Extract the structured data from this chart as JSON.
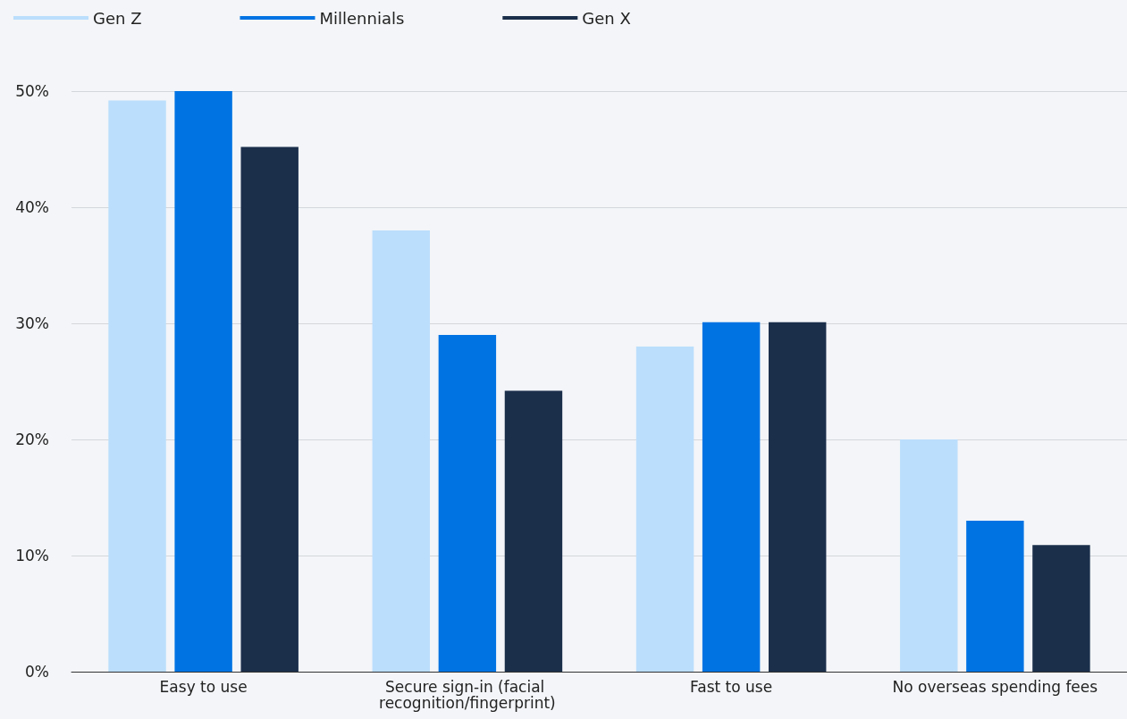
{
  "chart_data": {
    "type": "bar",
    "categories": [
      "Easy to use",
      "Secure sign-in (facial recognition/fingerprint)",
      "Fast to use",
      "No overseas spending fees"
    ],
    "series": [
      {
        "name": "Gen Z",
        "color": "#bbdefc",
        "values": [
          49.2,
          38,
          28,
          20
        ]
      },
      {
        "name": "Millennials",
        "color": "#0073e3",
        "values": [
          50,
          29,
          30.1,
          13
        ]
      },
      {
        "name": "Gen X",
        "color": "#1b2f4b",
        "values": [
          45.2,
          24.2,
          30.1,
          10.9
        ]
      }
    ],
    "ylim": [
      0,
      50
    ],
    "yticks": [
      {
        "value": 0,
        "label": "0%"
      },
      {
        "value": 10,
        "label": "10%"
      },
      {
        "value": 20,
        "label": "20%"
      },
      {
        "value": 30,
        "label": "30%"
      },
      {
        "value": 40,
        "label": "40%"
      },
      {
        "value": 50,
        "label": "50%"
      }
    ],
    "grid": "y",
    "legend": "top left"
  }
}
